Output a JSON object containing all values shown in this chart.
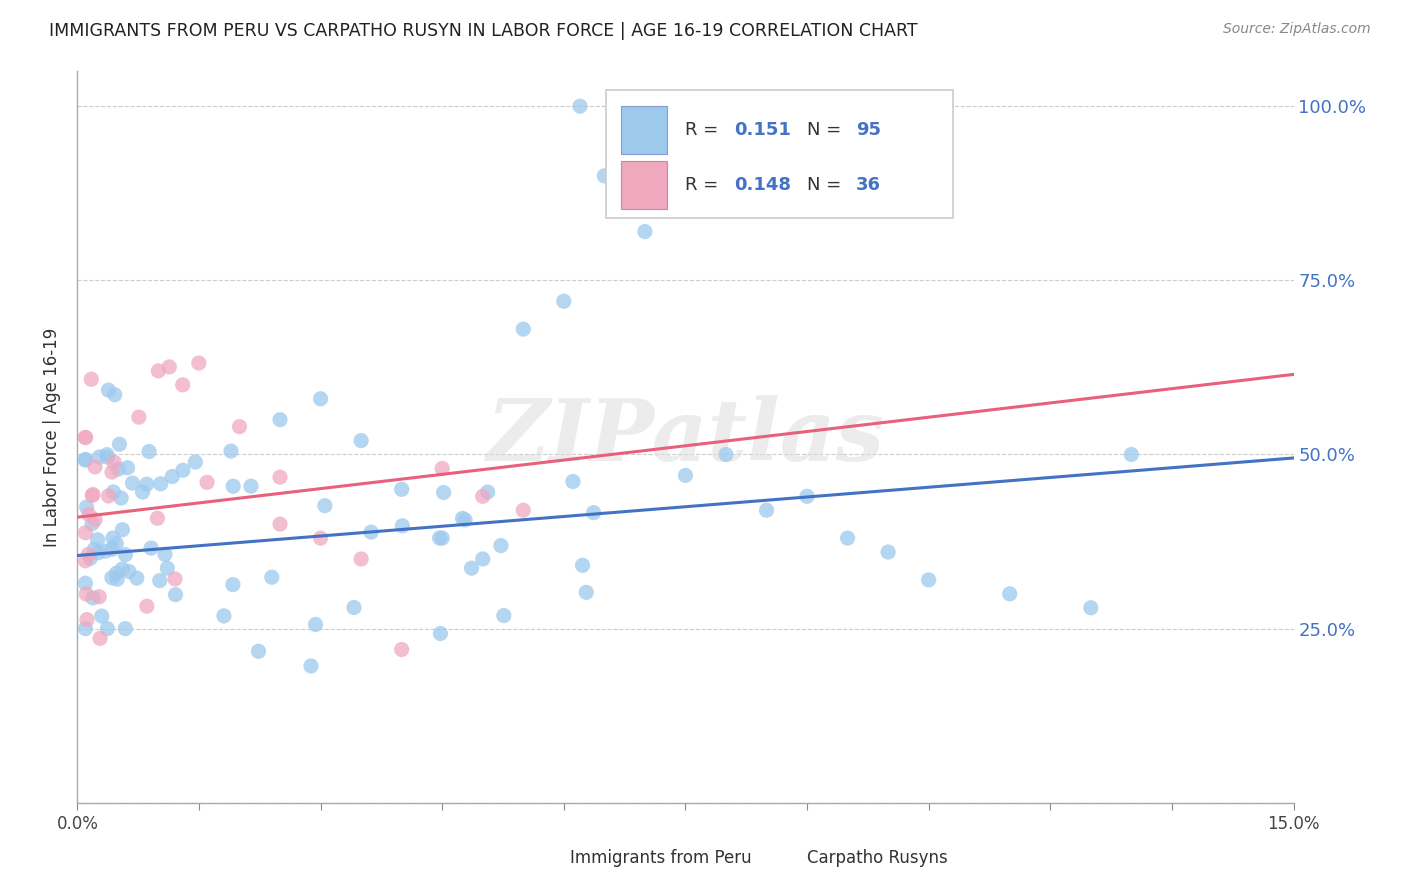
{
  "title": "IMMIGRANTS FROM PERU VS CARPATHO RUSYN IN LABOR FORCE | AGE 16-19 CORRELATION CHART",
  "source": "Source: ZipAtlas.com",
  "ylabel": "In Labor Force | Age 16-19",
  "xlim": [
    0.0,
    0.15
  ],
  "ylim": [
    0.0,
    1.05
  ],
  "ytick_vals": [
    0.0,
    0.25,
    0.5,
    0.75,
    1.0
  ],
  "ytick_labels": [
    "",
    "25.0%",
    "50.0%",
    "75.0%",
    "100.0%"
  ],
  "xtick_vals": [
    0.0,
    0.015,
    0.03,
    0.045,
    0.06,
    0.075,
    0.09,
    0.105,
    0.12,
    0.135,
    0.15
  ],
  "xtick_labels": [
    "0.0%",
    "",
    "",
    "",
    "",
    "",
    "",
    "",
    "",
    "",
    "15.0%"
  ],
  "legend_r_peru": "0.151",
  "legend_n_peru": "95",
  "legend_r_rusyn": "0.148",
  "legend_n_rusyn": "36",
  "color_peru": "#9dc9ed",
  "color_rusyn": "#f0a8bf",
  "color_line_peru": "#4472c4",
  "color_line_rusyn": "#e8607a",
  "background_color": "#ffffff",
  "watermark": "ZIPatlas",
  "peru_line_x0": 0.0,
  "peru_line_y0": 0.355,
  "peru_line_x1": 0.15,
  "peru_line_y1": 0.495,
  "rusyn_line_x0": 0.0,
  "rusyn_line_y0": 0.41,
  "rusyn_line_x1": 0.15,
  "rusyn_line_y1": 0.615
}
